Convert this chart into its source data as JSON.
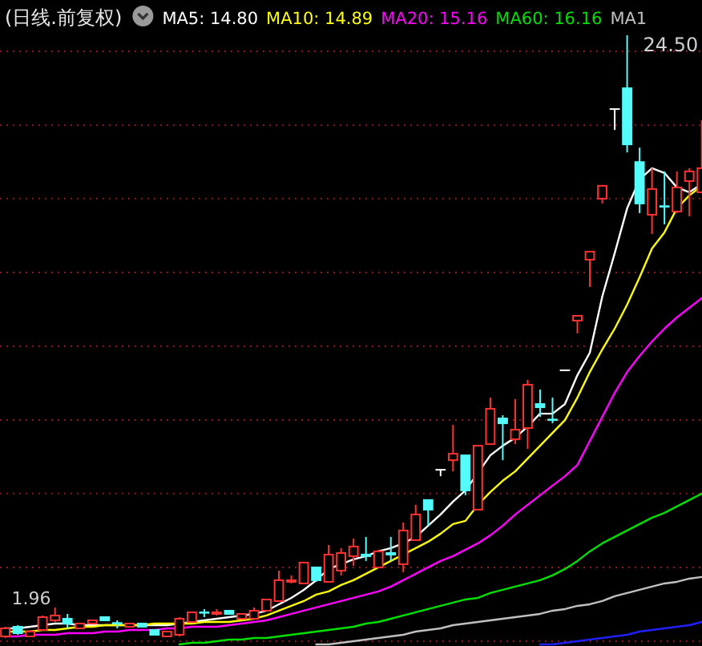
{
  "chart_data": {
    "type": "candlestick",
    "title": "(日线.前复权)",
    "categories": [
      null,
      null,
      null,
      null,
      null,
      null,
      null,
      null,
      null,
      null,
      null,
      null,
      null,
      null,
      null,
      null,
      null,
      null,
      null,
      null,
      null,
      null,
      null,
      null,
      null,
      null,
      null,
      null,
      null,
      null,
      null,
      null,
      null,
      null,
      null,
      null,
      null,
      null,
      null,
      null,
      null,
      null,
      null,
      null,
      null,
      null,
      null,
      null,
      null,
      null,
      null,
      null,
      null,
      null,
      null,
      null,
      null
    ],
    "ohlc": [
      [
        2.02,
        2.38,
        1.96,
        2.32
      ],
      [
        2.38,
        2.44,
        2.08,
        2.14
      ],
      [
        2.02,
        2.26,
        2.02,
        2.2
      ],
      [
        2.26,
        2.8,
        2.26,
        2.74
      ],
      [
        2.62,
        3.1,
        2.56,
        2.8
      ],
      [
        2.68,
        2.86,
        2.32,
        2.5
      ],
      [
        2.32,
        2.5,
        2.32,
        2.5
      ],
      [
        2.5,
        2.62,
        2.5,
        2.62
      ],
      [
        2.74,
        2.74,
        2.62,
        2.62
      ],
      [
        2.52,
        2.62,
        2.32,
        2.5
      ],
      [
        2.38,
        2.5,
        2.38,
        2.5
      ],
      [
        2.5,
        2.5,
        2.38,
        2.38
      ],
      [
        2.26,
        2.26,
        2.08,
        2.08
      ],
      [
        2.02,
        2.2,
        2.02,
        2.2
      ],
      [
        2.08,
        2.74,
        2.02,
        2.68
      ],
      [
        2.56,
        2.92,
        2.56,
        2.92
      ],
      [
        2.92,
        3.04,
        2.74,
        2.9
      ],
      [
        2.86,
        3.04,
        2.8,
        2.92
      ],
      [
        2.98,
        2.98,
        2.86,
        2.86
      ],
      [
        2.68,
        2.86,
        2.68,
        2.86
      ],
      [
        2.68,
        3.1,
        2.68,
        2.98
      ],
      [
        2.98,
        3.4,
        2.98,
        3.4
      ],
      [
        3.34,
        4.48,
        3.34,
        4.12
      ],
      [
        4.06,
        4.3,
        4.0,
        4.12
      ],
      [
        4.0,
        4.78,
        4.0,
        4.78
      ],
      [
        4.6,
        4.6,
        4.06,
        4.12
      ],
      [
        4.06,
        5.44,
        4.06,
        5.08
      ],
      [
        4.48,
        5.32,
        4.3,
        5.14
      ],
      [
        5.02,
        5.68,
        4.66,
        5.38
      ],
      [
        5.08,
        5.74,
        4.84,
        5.02
      ],
      [
        4.6,
        5.26,
        4.6,
        5.2
      ],
      [
        5.14,
        5.74,
        4.84,
        5.08
      ],
      [
        4.72,
        6.28,
        4.42,
        5.98
      ],
      [
        5.62,
        6.94,
        5.62,
        6.58
      ],
      [
        7.12,
        7.12,
        6.16,
        6.76
      ],
      [
        8.25,
        8.25,
        8.01,
        8.25
      ],
      [
        8.61,
        9.93,
        8.19,
        8.85
      ],
      [
        8.79,
        8.79,
        7.3,
        7.48
      ],
      [
        6.76,
        9.15,
        6.76,
        9.15
      ],
      [
        9.21,
        10.95,
        9.21,
        10.53
      ],
      [
        10.17,
        10.29,
        8.61,
        9.99
      ],
      [
        9.39,
        10.89,
        9.21,
        9.75
      ],
      [
        9.81,
        11.61,
        9.03,
        11.43
      ],
      [
        10.71,
        11.25,
        10.23,
        10.59
      ],
      [
        10.13,
        10.95,
        9.99,
        10.11
      ],
      [
        11.97,
        11.97,
        11.97,
        11.97
      ],
      [
        13.83,
        14.01,
        13.35,
        14.01
      ],
      [
        16.11,
        16.41,
        15.09,
        16.41
      ],
      [
        18.39,
        18.87,
        18.21,
        18.87
      ],
      [
        21.74,
        21.74,
        20.96,
        21.74
      ],
      [
        22.52,
        24.5,
        20.12,
        20.42
      ],
      [
        19.76,
        20.3,
        17.85,
        18.21
      ],
      [
        17.79,
        19.53,
        17.07,
        18.75
      ],
      [
        18.11,
        19.41,
        17.43,
        18.09
      ],
      [
        17.91,
        19.41,
        17.85,
        18.81
      ],
      [
        19.05,
        19.53,
        17.73,
        19.41
      ],
      [
        18.63,
        21.32,
        18.63,
        19.53
      ]
    ],
    "colors": [
      "#ff3232",
      "#54fcfc",
      "#ff3232",
      "#ff3232",
      "#ff3232",
      "#54fcfc",
      "#ff3232",
      "#ff3232",
      "#54fcfc",
      "#54fcfc",
      "#ff3232",
      "#54fcfc",
      "#54fcfc",
      "#ff3232",
      "#ff3232",
      "#ff3232",
      "#54fcfc",
      "#ff3232",
      "#54fcfc",
      "#ff3232",
      "#ff3232",
      "#ff3232",
      "#ff3232",
      "#ff3232",
      "#ff3232",
      "#54fcfc",
      "#ff3232",
      "#ff3232",
      "#ff3232",
      "#54fcfc",
      "#ff3232",
      "#54fcfc",
      "#ff3232",
      "#ff3232",
      "#54fcfc",
      "#ffffff",
      "#ff3232",
      "#54fcfc",
      "#ff3232",
      "#ff3232",
      "#54fcfc",
      "#ff3232",
      "#ff3232",
      "#54fcfc",
      "#54fcfc",
      "#ffffff",
      "#ff3232",
      "#ff3232",
      "#ff3232",
      "#ffffff",
      "#54fcfc",
      "#54fcfc",
      "#ff3232",
      "#54fcfc",
      "#ff3232",
      "#ff3232",
      "#ff3232"
    ],
    "ylim": [
      1.66,
      25.82
    ],
    "yticks": [
      {
        "value": 1.84,
        "label": null
      },
      {
        "value": 4.6,
        "label": null
      },
      {
        "value": 7.36,
        "label": null
      },
      {
        "value": 10.11,
        "label": null
      },
      {
        "value": 12.87,
        "label": null
      },
      {
        "value": 15.63,
        "label": null
      },
      {
        "value": 18.39,
        "label": null
      },
      {
        "value": 21.14,
        "label": null
      },
      {
        "value": 23.9,
        "label": null
      }
    ],
    "grid": "y",
    "series": [
      {
        "type": "line",
        "color": "#ffffff",
        "values": [
          2.32,
          2.32,
          2.38,
          2.44,
          2.5,
          2.5,
          2.44,
          2.44,
          2.44,
          2.44,
          2.44,
          2.44,
          2.44,
          2.44,
          2.5,
          2.56,
          2.62,
          2.68,
          2.74,
          2.8,
          2.86,
          2.98,
          3.22,
          3.46,
          3.76,
          4.12,
          4.54,
          4.72,
          4.9,
          5.02,
          5.2,
          5.32,
          5.5,
          5.74,
          6.16,
          6.58,
          7.06,
          7.48,
          8.13,
          8.79,
          9.15,
          9.45,
          9.87,
          10.35,
          10.35,
          10.71,
          11.79,
          12.63,
          14.73,
          16.35,
          18.03,
          19.11,
          19.53,
          19.35,
          18.81,
          18.63,
          18.93
        ]
      },
      {
        "type": "line",
        "color": "#ffff00",
        "values": [
          2.2,
          2.2,
          2.2,
          2.26,
          2.26,
          2.32,
          2.38,
          2.38,
          2.44,
          2.44,
          2.44,
          2.44,
          2.5,
          2.5,
          2.5,
          2.5,
          2.56,
          2.56,
          2.56,
          2.62,
          2.68,
          2.8,
          2.98,
          3.16,
          3.34,
          3.58,
          3.7,
          3.94,
          4.12,
          4.36,
          4.6,
          4.84,
          5.08,
          5.32,
          5.56,
          5.86,
          6.22,
          6.34,
          6.94,
          7.42,
          7.84,
          8.19,
          8.67,
          9.15,
          9.63,
          10.11,
          10.95,
          11.91,
          12.75,
          13.53,
          14.43,
          15.45,
          16.53,
          17.13,
          18.03,
          18.51,
          18.87
        ]
      },
      {
        "type": "line",
        "color": "#ff00ff",
        "values": [
          2.02,
          2.02,
          2.08,
          2.08,
          2.08,
          2.14,
          2.14,
          2.14,
          2.2,
          2.2,
          2.26,
          2.26,
          2.26,
          2.32,
          2.32,
          2.38,
          2.38,
          2.38,
          2.44,
          2.5,
          2.56,
          2.62,
          2.74,
          2.86,
          2.98,
          3.1,
          3.22,
          3.34,
          3.46,
          3.58,
          3.7,
          3.88,
          4.12,
          4.36,
          4.6,
          4.84,
          5.02,
          5.26,
          5.5,
          5.8,
          6.16,
          6.58,
          6.94,
          7.3,
          7.66,
          8.01,
          8.43,
          9.33,
          10.23,
          11.13,
          11.91,
          12.51,
          13.05,
          13.53,
          13.95,
          14.31,
          14.67
        ]
      },
      {
        "type": "line",
        "color": "#00e000",
        "values": [
          null,
          null,
          null,
          null,
          null,
          null,
          null,
          null,
          null,
          null,
          null,
          null,
          null,
          null,
          1.72,
          1.78,
          1.78,
          1.84,
          1.9,
          1.9,
          1.96,
          1.96,
          2.02,
          2.08,
          2.14,
          2.2,
          2.26,
          2.32,
          2.38,
          2.5,
          2.56,
          2.68,
          2.8,
          2.92,
          3.04,
          3.16,
          3.28,
          3.4,
          3.46,
          3.64,
          3.76,
          3.88,
          4.0,
          4.12,
          4.3,
          4.54,
          4.84,
          5.2,
          5.5,
          5.74,
          5.98,
          6.22,
          6.46,
          6.64,
          6.88,
          7.12,
          7.36
        ]
      },
      {
        "type": "line",
        "color": "#c0c0c0",
        "values": [
          null,
          null,
          null,
          null,
          null,
          null,
          null,
          null,
          null,
          null,
          null,
          null,
          null,
          null,
          null,
          null,
          null,
          null,
          null,
          null,
          null,
          null,
          null,
          null,
          null,
          1.72,
          1.72,
          1.78,
          1.84,
          1.9,
          1.96,
          2.02,
          2.08,
          2.2,
          2.26,
          2.32,
          2.44,
          2.5,
          2.56,
          2.62,
          2.68,
          2.74,
          2.8,
          2.86,
          2.98,
          3.04,
          3.16,
          3.22,
          3.34,
          3.52,
          3.64,
          3.76,
          3.88,
          4.0,
          4.06,
          4.18,
          4.24
        ]
      },
      {
        "type": "line",
        "color": "#2020ff",
        "values": [
          null,
          null,
          null,
          null,
          null,
          null,
          null,
          null,
          null,
          null,
          null,
          null,
          null,
          null,
          null,
          null,
          null,
          null,
          null,
          null,
          null,
          null,
          null,
          null,
          null,
          null,
          null,
          null,
          null,
          null,
          null,
          null,
          null,
          null,
          null,
          null,
          null,
          null,
          null,
          null,
          null,
          null,
          null,
          1.72,
          1.72,
          1.78,
          1.84,
          1.9,
          1.96,
          2.02,
          2.08,
          2.2,
          2.26,
          2.32,
          2.38,
          2.44,
          2.56
        ]
      }
    ],
    "annotations": [
      "MA5: 14.80",
      "MA10: 14.89",
      "MA20: 15.16",
      "MA60: 16.16",
      "MA1",
      "24.50",
      "1.96"
    ]
  }
}
